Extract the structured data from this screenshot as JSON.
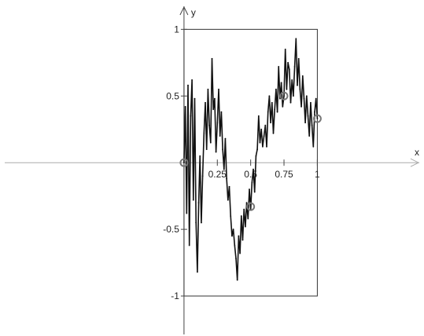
{
  "chart_data": {
    "type": "line",
    "xlabel": "x",
    "ylabel": "y",
    "xlim": [
      -1.38,
      1.8
    ],
    "ylim": [
      -1.3,
      1.22
    ],
    "box": {
      "x": [
        0,
        1
      ],
      "y": [
        -1,
        1
      ]
    },
    "x_ticks": [
      {
        "value": 0.25,
        "label": "0.25"
      },
      {
        "value": 0.5,
        "label": "0.5"
      },
      {
        "value": 0.75,
        "label": "0.75"
      },
      {
        "value": 1,
        "label": "1"
      }
    ],
    "y_ticks": [
      {
        "value": 1,
        "label": "1"
      },
      {
        "value": 0.5,
        "label": "0.5"
      },
      {
        "value": -0.5,
        "label": "-0.5"
      },
      {
        "value": -1,
        "label": "-1"
      }
    ],
    "series": [
      {
        "x": [
          0,
          0.01,
          0.02,
          0.03,
          0.04,
          0.05,
          0.06,
          0.07,
          0.08,
          0.09,
          0.1,
          0.11,
          0.12,
          0.13,
          0.14,
          0.15,
          0.16,
          0.17,
          0.18,
          0.19,
          0.2,
          0.21,
          0.22,
          0.23,
          0.24,
          0.25,
          0.26,
          0.27,
          0.28,
          0.29,
          0.3,
          0.31,
          0.32,
          0.33,
          0.34,
          0.35,
          0.36,
          0.37,
          0.38,
          0.39,
          0.4,
          0.41,
          0.42,
          0.43,
          0.44,
          0.45,
          0.46,
          0.47,
          0.48,
          0.49,
          0.5,
          0.51,
          0.52,
          0.53,
          0.54,
          0.55,
          0.56,
          0.57,
          0.58,
          0.59,
          0.6,
          0.61,
          0.62,
          0.63,
          0.64,
          0.65,
          0.66,
          0.67,
          0.68,
          0.69,
          0.7,
          0.71,
          0.72,
          0.73,
          0.74,
          0.75,
          0.76,
          0.77,
          0.78,
          0.79,
          0.8,
          0.81,
          0.82,
          0.83,
          0.84,
          0.85,
          0.86,
          0.87,
          0.88,
          0.89,
          0.9,
          0.91,
          0.92,
          0.93,
          0.94,
          0.95,
          0.96,
          0.97,
          0.98,
          0.99,
          1
        ],
        "y": [
          0,
          0.42,
          -0.38,
          0.58,
          -0.62,
          0.35,
          0.62,
          -0.28,
          0.48,
          -0.45,
          -0.82,
          -0.3,
          0.05,
          -0.45,
          -0.1,
          0.22,
          0.45,
          0.1,
          0.55,
          0.28,
          0.15,
          0.78,
          0.4,
          0.48,
          0.08,
          0.3,
          0.55,
          0.2,
          0.38,
          0.1,
          -0.05,
          0.18,
          -0.12,
          -0.28,
          -0.18,
          -0.4,
          -0.55,
          -0.5,
          -0.62,
          -0.72,
          -0.88,
          -0.55,
          -0.68,
          -0.4,
          -0.58,
          -0.35,
          -0.48,
          -0.3,
          -0.42,
          -0.2,
          -0.35,
          -0.15,
          -0.05,
          -0.22,
          0.05,
          0.1,
          0.35,
          0.15,
          0.25,
          0.12,
          0.2,
          0.28,
          0.12,
          0.38,
          0.5,
          0.3,
          0.45,
          0.22,
          0.4,
          0.55,
          0.38,
          0.72,
          0.48,
          0.6,
          0.42,
          0.5,
          0.85,
          0.55,
          0.75,
          0.7,
          0.45,
          0.62,
          0.5,
          0.72,
          0.93,
          0.58,
          0.78,
          0.55,
          0.42,
          0.65,
          0.48,
          0.3,
          0.5,
          0.35,
          0.2,
          0.45,
          0.28,
          0.12,
          0.38,
          0.48,
          0.33
        ]
      }
    ],
    "markers": [
      {
        "x": 0,
        "y": 0
      },
      {
        "x": 0.5,
        "y": -0.33
      },
      {
        "x": 0.75,
        "y": 0.5
      },
      {
        "x": 1,
        "y": 0.33
      }
    ]
  }
}
